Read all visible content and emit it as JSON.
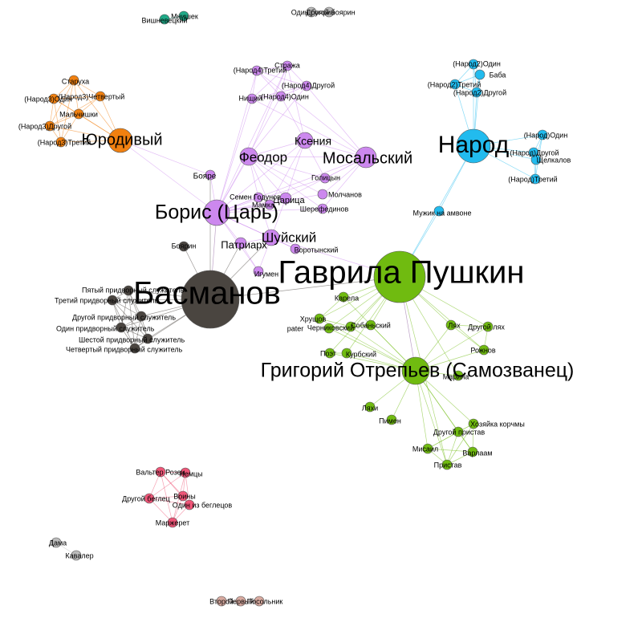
{
  "colors": {
    "purple": "#cc88ee",
    "orange": "#f08010",
    "blue": "#22bbee",
    "green": "#70bb10",
    "dark": "#4a4540",
    "teal": "#20aa88",
    "pink": "#ee5577",
    "gray": "#bbbbbb",
    "tan": "#d8aaa0"
  },
  "nodes": [
    {
      "id": "gavrila",
      "label": "Гаврила Пушкин",
      "group": "green",
      "size": "xl"
    },
    {
      "id": "grigoriy",
      "label": "Григорий Отрепьев (Самозванец)",
      "group": "green",
      "size": "l"
    },
    {
      "id": "basmanov",
      "label": "Басманов",
      "group": "dark",
      "size": "xl"
    },
    {
      "id": "boris",
      "label": "Борис (Царь)",
      "group": "purple",
      "size": "l"
    },
    {
      "id": "narod",
      "label": "Народ",
      "group": "blue",
      "size": "l"
    },
    {
      "id": "yurodiviy",
      "label": "Юродивый",
      "group": "orange",
      "size": "m"
    },
    {
      "id": "mosalskiy",
      "label": "Мосальский",
      "group": "purple",
      "size": "m"
    },
    {
      "id": "feodor",
      "label": "Феодор",
      "group": "purple",
      "size": "m"
    },
    {
      "id": "kseniya",
      "label": "Ксения",
      "group": "purple",
      "size": "m"
    },
    {
      "id": "shuyskiy",
      "label": "Шуйский",
      "group": "purple",
      "size": "m"
    },
    {
      "id": "patriarh",
      "label": "Патриарх",
      "group": "purple",
      "size": "s"
    },
    {
      "id": "tsaritsa",
      "label": "Царица",
      "group": "purple",
      "size": "s"
    },
    {
      "id": "semen",
      "label": "Семен Годунов",
      "group": "purple",
      "size": "xs"
    },
    {
      "id": "boyare",
      "label": "Бояре",
      "group": "purple",
      "size": "xs"
    },
    {
      "id": "golitsyn",
      "label": "Голицын",
      "group": "purple",
      "size": "xs"
    },
    {
      "id": "molchanov",
      "label": "Молчанов",
      "group": "purple",
      "size": "xs"
    },
    {
      "id": "sheref",
      "label": "Шерефединов",
      "group": "purple",
      "size": "xs"
    },
    {
      "id": "vorotynskiy",
      "label": "Воротынский",
      "group": "purple",
      "size": "xs"
    },
    {
      "id": "igumen",
      "label": "Игумен",
      "group": "purple",
      "size": "xs"
    },
    {
      "id": "mamka",
      "label": "Мамка",
      "group": "purple",
      "size": "xs"
    },
    {
      "id": "strazha",
      "label": "Стража",
      "group": "purple",
      "size": "xs"
    },
    {
      "id": "n4tretiy",
      "label": "(Народ4)Третий",
      "group": "purple",
      "size": "xs"
    },
    {
      "id": "n4drugoy",
      "label": "(Народ4)Другой",
      "group": "purple",
      "size": "xs"
    },
    {
      "id": "n4odin",
      "label": "(Народ4)Один",
      "group": "purple",
      "size": "xs"
    },
    {
      "id": "nishiy",
      "label": "Нищий",
      "group": "purple",
      "size": "xs"
    },
    {
      "id": "staruha",
      "label": "Старуха",
      "group": "orange",
      "size": "xs"
    },
    {
      "id": "n3odin",
      "label": "(Народ3)Один",
      "group": "orange",
      "size": "xs"
    },
    {
      "id": "n3chetv",
      "label": "(Народ3)Четвертый",
      "group": "orange",
      "size": "xs"
    },
    {
      "id": "malchishki",
      "label": "Мальчишки",
      "group": "orange",
      "size": "xs"
    },
    {
      "id": "n3drugoy",
      "label": "(Народ3)Другой",
      "group": "orange",
      "size": "xs"
    },
    {
      "id": "n3tretiy",
      "label": "(Народ3)Третий",
      "group": "orange",
      "size": "xs"
    },
    {
      "id": "n2odin",
      "label": "(Народ2)Один",
      "group": "blue",
      "size": "xs"
    },
    {
      "id": "baba",
      "label": "Баба",
      "group": "blue",
      "size": "xs"
    },
    {
      "id": "n2tretiy",
      "label": "(Народ2)Третий",
      "group": "blue",
      "size": "xs"
    },
    {
      "id": "n2drugoy",
      "label": "(Народ2)Другой",
      "group": "blue",
      "size": "xs"
    },
    {
      "id": "nodin",
      "label": "(Народ)Один",
      "group": "blue",
      "size": "xs"
    },
    {
      "id": "ndrugoy",
      "label": "(Народ)Другой",
      "group": "blue",
      "size": "xs"
    },
    {
      "id": "shelkalov",
      "label": "Щелкалов",
      "group": "blue",
      "size": "xs"
    },
    {
      "id": "ntretiy",
      "label": "(Народ)Третий",
      "group": "blue",
      "size": "xs"
    },
    {
      "id": "muzhik",
      "label": "Мужик на амвоне",
      "group": "blue",
      "size": "xs"
    },
    {
      "id": "boyarin",
      "label": "Боярин",
      "group": "dark",
      "size": "xs"
    },
    {
      "id": "pyatyy",
      "label": "Пятый придворный служитель",
      "group": "dark",
      "size": "xs"
    },
    {
      "id": "tretiyprid",
      "label": "Третий придворный служитель",
      "group": "dark",
      "size": "xs"
    },
    {
      "id": "drugoyprid",
      "label": "Другой придворный служитель",
      "group": "dark",
      "size": "xs"
    },
    {
      "id": "odinprid",
      "label": "Один придворный служитель",
      "group": "dark",
      "size": "xs"
    },
    {
      "id": "shestoy",
      "label": "Шестой придворный служитель",
      "group": "dark",
      "size": "xs"
    },
    {
      "id": "chetvprid",
      "label": "Четвертый придворный служитель",
      "group": "dark",
      "size": "xs"
    },
    {
      "id": "karela",
      "label": "Карела",
      "group": "green",
      "size": "xs"
    },
    {
      "id": "hrushov",
      "label": "Хрущов",
      "group": "green",
      "size": "xs"
    },
    {
      "id": "chernikovskiy",
      "label": "Черниковский",
      "group": "green",
      "size": "xs"
    },
    {
      "id": "sobanskiy",
      "label": "Собаньский",
      "group": "green",
      "size": "xs"
    },
    {
      "id": "pater",
      "label": "pater",
      "group": "green",
      "size": "xs"
    },
    {
      "id": "poet",
      "label": "Поэт",
      "group": "green",
      "size": "xs"
    },
    {
      "id": "kurbskiy",
      "label": "Курбский",
      "group": "green",
      "size": "xs"
    },
    {
      "id": "lyah",
      "label": "Лях",
      "group": "green",
      "size": "xs"
    },
    {
      "id": "drugoylyah",
      "label": "Другой лях",
      "group": "green",
      "size": "xs"
    },
    {
      "id": "rozhnov",
      "label": "Рожнов",
      "group": "green",
      "size": "xs"
    },
    {
      "id": "marina",
      "label": "Марина",
      "group": "green",
      "size": "xs"
    },
    {
      "id": "lyahi",
      "label": "Ляхи",
      "group": "green",
      "size": "xs"
    },
    {
      "id": "pimen",
      "label": "Пимен",
      "group": "green",
      "size": "xs"
    },
    {
      "id": "hozyayka",
      "label": "Хозяйка корчмы",
      "group": "green",
      "size": "xs"
    },
    {
      "id": "drugoypristav",
      "label": "Другой пристав",
      "group": "green",
      "size": "xs"
    },
    {
      "id": "misail",
      "label": "Мисаил",
      "group": "green",
      "size": "xs"
    },
    {
      "id": "varlaam",
      "label": "Варлаам",
      "group": "green",
      "size": "xs"
    },
    {
      "id": "pristav",
      "label": "Пристав",
      "group": "green",
      "size": "xs"
    },
    {
      "id": "vishnevetskiy",
      "label": "Вишневецкий",
      "group": "teal",
      "size": "xs"
    },
    {
      "id": "mnishek",
      "label": "Мнишек",
      "group": "teal",
      "size": "xs"
    },
    {
      "id": "odinboyarin",
      "label": "Один боярин",
      "group": "gray",
      "size": "xs"
    },
    {
      "id": "drugoyboyarin",
      "label": "Другой боярин",
      "group": "gray",
      "size": "xs"
    },
    {
      "id": "valter",
      "label": "Вальтер Розен",
      "group": "pink",
      "size": "xs"
    },
    {
      "id": "nemtsy",
      "label": "Немцы",
      "group": "pink",
      "size": "xs"
    },
    {
      "id": "voiny",
      "label": "Воины",
      "group": "pink",
      "size": "xs"
    },
    {
      "id": "drugoybeglets",
      "label": "Другой беглец",
      "group": "pink",
      "size": "xs"
    },
    {
      "id": "odinbeglets",
      "label": "Один из беглецов",
      "group": "pink",
      "size": "xs"
    },
    {
      "id": "marzheret",
      "label": "Маржерет",
      "group": "pink",
      "size": "xs"
    },
    {
      "id": "dama",
      "label": "Дама",
      "group": "gray",
      "size": "xs"
    },
    {
      "id": "kavaler",
      "label": "Кавалер",
      "group": "gray",
      "size": "xs"
    },
    {
      "id": "vtoroy",
      "label": "Второй",
      "group": "tan",
      "size": "xs"
    },
    {
      "id": "pervyy",
      "label": "Первый",
      "group": "tan",
      "size": "xs"
    },
    {
      "id": "posolnik",
      "label": "Посольник",
      "group": "tan",
      "size": "xs"
    }
  ],
  "edges": [
    [
      "boris",
      "feodor"
    ],
    [
      "boris",
      "kseniya"
    ],
    [
      "boris",
      "mosalskiy"
    ],
    [
      "boris",
      "shuyskiy"
    ],
    [
      "boris",
      "patriarh"
    ],
    [
      "boris",
      "tsaritsa"
    ],
    [
      "boris",
      "semen"
    ],
    [
      "boris",
      "boyare"
    ],
    [
      "boris",
      "basmanov"
    ],
    [
      "boris",
      "golitsyn"
    ],
    [
      "boris",
      "mamka"
    ],
    [
      "boris",
      "strazha"
    ],
    [
      "boris",
      "nishiy"
    ],
    [
      "boris",
      "n4odin"
    ],
    [
      "boris",
      "n4tretiy"
    ],
    [
      "boris",
      "igumen"
    ],
    [
      "boris",
      "vorotynskiy"
    ],
    [
      "boris",
      "molchanov"
    ],
    [
      "boris",
      "sheref"
    ],
    [
      "feodor",
      "kseniya"
    ],
    [
      "feodor",
      "mosalskiy"
    ],
    [
      "feodor",
      "tsaritsa"
    ],
    [
      "feodor",
      "golitsyn"
    ],
    [
      "feodor",
      "molchanov"
    ],
    [
      "feodor",
      "sheref"
    ],
    [
      "feodor",
      "semen"
    ],
    [
      "feodor",
      "n4drugoy"
    ],
    [
      "feodor",
      "strazha"
    ],
    [
      "feodor",
      "mamka"
    ],
    [
      "kseniya",
      "mosalskiy"
    ],
    [
      "kseniya",
      "tsaritsa"
    ],
    [
      "kseniya",
      "mamka"
    ],
    [
      "kseniya",
      "n4odin"
    ],
    [
      "kseniya",
      "strazha"
    ],
    [
      "kseniya",
      "golitsyn"
    ],
    [
      "mosalskiy",
      "tsaritsa"
    ],
    [
      "mosalskiy",
      "golitsyn"
    ],
    [
      "mosalskiy",
      "molchanov"
    ],
    [
      "mosalskiy",
      "sheref"
    ],
    [
      "mosalskiy",
      "n4drugoy"
    ],
    [
      "mosalskiy",
      "n4tretiy"
    ],
    [
      "mosalskiy",
      "nishiy"
    ],
    [
      "n4tretiy",
      "strazha"
    ],
    [
      "n4tretiy",
      "n4drugoy"
    ],
    [
      "n4tretiy",
      "n4odin"
    ],
    [
      "n4tretiy",
      "nishiy"
    ],
    [
      "n4drugoy",
      "n4odin"
    ],
    [
      "n4drugoy",
      "nishiy"
    ],
    [
      "n4odin",
      "nishiy"
    ],
    [
      "strazha",
      "nishiy"
    ],
    [
      "strazha",
      "n4odin"
    ],
    [
      "strazha",
      "n4drugoy"
    ],
    [
      "shuyskiy",
      "vorotynskiy"
    ],
    [
      "shuyskiy",
      "patriarh"
    ],
    [
      "shuyskiy",
      "gavrila"
    ],
    [
      "shuyskiy",
      "tsaritsa"
    ],
    [
      "shuyskiy",
      "igumen"
    ],
    [
      "shuyskiy",
      "semen"
    ],
    [
      "patriarh",
      "igumen"
    ],
    [
      "boris",
      "yurodiviy"
    ],
    [
      "boyare",
      "yurodiviy"
    ],
    [
      "yurodiviy",
      "staruha"
    ],
    [
      "yurodiviy",
      "n3odin"
    ],
    [
      "yurodiviy",
      "n3chetv"
    ],
    [
      "yurodiviy",
      "malchishki"
    ],
    [
      "yurodiviy",
      "n3drugoy"
    ],
    [
      "yurodiviy",
      "n3tretiy"
    ],
    [
      "staruha",
      "n3odin"
    ],
    [
      "staruha",
      "n3chetv"
    ],
    [
      "staruha",
      "malchishki"
    ],
    [
      "staruha",
      "n3drugoy"
    ],
    [
      "staruha",
      "n3tretiy"
    ],
    [
      "n3odin",
      "n3chetv"
    ],
    [
      "n3odin",
      "malchishki"
    ],
    [
      "n3odin",
      "n3drugoy"
    ],
    [
      "n3odin",
      "n3tretiy"
    ],
    [
      "n3chetv",
      "malchishki"
    ],
    [
      "n3chetv",
      "n3drugoy"
    ],
    [
      "n3drugoy",
      "n3tretiy"
    ],
    [
      "malchishki",
      "n3tretiy"
    ],
    [
      "malchishki",
      "n3drugoy"
    ],
    [
      "narod",
      "n2odin"
    ],
    [
      "narod",
      "baba"
    ],
    [
      "narod",
      "n2tretiy"
    ],
    [
      "narod",
      "n2drugoy"
    ],
    [
      "narod",
      "nodin"
    ],
    [
      "narod",
      "ndrugoy"
    ],
    [
      "narod",
      "shelkalov"
    ],
    [
      "narod",
      "ntretiy"
    ],
    [
      "narod",
      "muzhik"
    ],
    [
      "narod",
      "gavrila"
    ],
    [
      "n2odin",
      "baba"
    ],
    [
      "n2odin",
      "n2tretiy"
    ],
    [
      "n2odin",
      "n2drugoy"
    ],
    [
      "baba",
      "n2tretiy"
    ],
    [
      "baba",
      "n2drugoy"
    ],
    [
      "n2tretiy",
      "n2drugoy"
    ],
    [
      "nodin",
      "ndrugoy"
    ],
    [
      "nodin",
      "shelkalov"
    ],
    [
      "nodin",
      "ntretiy"
    ],
    [
      "ndrugoy",
      "shelkalov"
    ],
    [
      "ndrugoy",
      "ntretiy"
    ],
    [
      "shelkalov",
      "ntretiy"
    ],
    [
      "muzhik",
      "gavrila"
    ],
    [
      "basmanov",
      "boyarin"
    ],
    [
      "basmanov",
      "pyatyy"
    ],
    [
      "basmanov",
      "tretiyprid"
    ],
    [
      "basmanov",
      "drugoyprid"
    ],
    [
      "basmanov",
      "odinprid"
    ],
    [
      "basmanov",
      "shestoy"
    ],
    [
      "basmanov",
      "chetvprid"
    ],
    [
      "basmanov",
      "gavrila"
    ],
    [
      "basmanov",
      "shuyskiy"
    ],
    [
      "basmanov",
      "patriarh"
    ],
    [
      "basmanov",
      "boyare"
    ],
    [
      "pyatyy",
      "tretiyprid"
    ],
    [
      "pyatyy",
      "drugoyprid"
    ],
    [
      "pyatyy",
      "odinprid"
    ],
    [
      "pyatyy",
      "shestoy"
    ],
    [
      "pyatyy",
      "chetvprid"
    ],
    [
      "tretiyprid",
      "drugoyprid"
    ],
    [
      "tretiyprid",
      "odinprid"
    ],
    [
      "tretiyprid",
      "shestoy"
    ],
    [
      "tretiyprid",
      "chetvprid"
    ],
    [
      "drugoyprid",
      "odinprid"
    ],
    [
      "drugoyprid",
      "shestoy"
    ],
    [
      "drugoyprid",
      "chetvprid"
    ],
    [
      "odinprid",
      "shestoy"
    ],
    [
      "odinprid",
      "chetvprid"
    ],
    [
      "shestoy",
      "chetvprid"
    ],
    [
      "gavrila",
      "grigoriy"
    ],
    [
      "gavrila",
      "karela"
    ],
    [
      "gavrila",
      "hrushov"
    ],
    [
      "gavrila",
      "chernikovskiy"
    ],
    [
      "gavrila",
      "sobanskiy"
    ],
    [
      "gavrila",
      "pater"
    ],
    [
      "gavrila",
      "poet"
    ],
    [
      "gavrila",
      "kurbskiy"
    ],
    [
      "gavrila",
      "lyah"
    ],
    [
      "gavrila",
      "drugoylyah"
    ],
    [
      "gavrila",
      "rozhnov"
    ],
    [
      "gavrila",
      "marina"
    ],
    [
      "gavrila",
      "pristav"
    ],
    [
      "grigoriy",
      "karela"
    ],
    [
      "grigoriy",
      "hrushov"
    ],
    [
      "grigoriy",
      "chernikovskiy"
    ],
    [
      "grigoriy",
      "sobanskiy"
    ],
    [
      "grigoriy",
      "pater"
    ],
    [
      "grigoriy",
      "poet"
    ],
    [
      "grigoriy",
      "kurbskiy"
    ],
    [
      "grigoriy",
      "lyah"
    ],
    [
      "grigoriy",
      "drugoylyah"
    ],
    [
      "grigoriy",
      "rozhnov"
    ],
    [
      "grigoriy",
      "marina"
    ],
    [
      "grigoriy",
      "lyahi"
    ],
    [
      "grigoriy",
      "pimen"
    ],
    [
      "grigoriy",
      "hozyayka"
    ],
    [
      "grigoriy",
      "drugoypristav"
    ],
    [
      "grigoriy",
      "misail"
    ],
    [
      "grigoriy",
      "varlaam"
    ],
    [
      "grigoriy",
      "pristav"
    ],
    [
      "karela",
      "hrushov"
    ],
    [
      "hrushov",
      "chernikovskiy"
    ],
    [
      "chernikovskiy",
      "sobanskiy"
    ],
    [
      "pater",
      "sobanskiy"
    ],
    [
      "poet",
      "kurbskiy"
    ],
    [
      "lyah",
      "drugoylyah"
    ],
    [
      "lyah",
      "rozhnov"
    ],
    [
      "drugoylyah",
      "rozhnov"
    ],
    [
      "hozyayka",
      "drugoypristav"
    ],
    [
      "hozyayka",
      "misail"
    ],
    [
      "hozyayka",
      "varlaam"
    ],
    [
      "hozyayka",
      "pristav"
    ],
    [
      "drugoypristav",
      "misail"
    ],
    [
      "drugoypristav",
      "varlaam"
    ],
    [
      "drugoypristav",
      "pristav"
    ],
    [
      "misail",
      "varlaam"
    ],
    [
      "misail",
      "pristav"
    ],
    [
      "varlaam",
      "pristav"
    ],
    [
      "vishnevetskiy",
      "mnishek"
    ],
    [
      "odinboyarin",
      "drugoyboyarin"
    ],
    [
      "valter",
      "nemtsy"
    ],
    [
      "valter",
      "voiny"
    ],
    [
      "valter",
      "drugoybeglets"
    ],
    [
      "valter",
      "odinbeglets"
    ],
    [
      "valter",
      "marzheret"
    ],
    [
      "nemtsy",
      "voiny"
    ],
    [
      "nemtsy",
      "drugoybeglets"
    ],
    [
      "nemtsy",
      "odinbeglets"
    ],
    [
      "nemtsy",
      "marzheret"
    ],
    [
      "voiny",
      "drugoybeglets"
    ],
    [
      "voiny",
      "odinbeglets"
    ],
    [
      "voiny",
      "marzheret"
    ],
    [
      "drugoybeglets",
      "odinbeglets"
    ],
    [
      "drugoybeglets",
      "marzheret"
    ],
    [
      "odinbeglets",
      "marzheret"
    ],
    [
      "dama",
      "kavaler"
    ],
    [
      "vtoroy",
      "pervyy"
    ],
    [
      "pervyy",
      "posolnik"
    ],
    [
      "vtoroy",
      "posolnik"
    ]
  ]
}
